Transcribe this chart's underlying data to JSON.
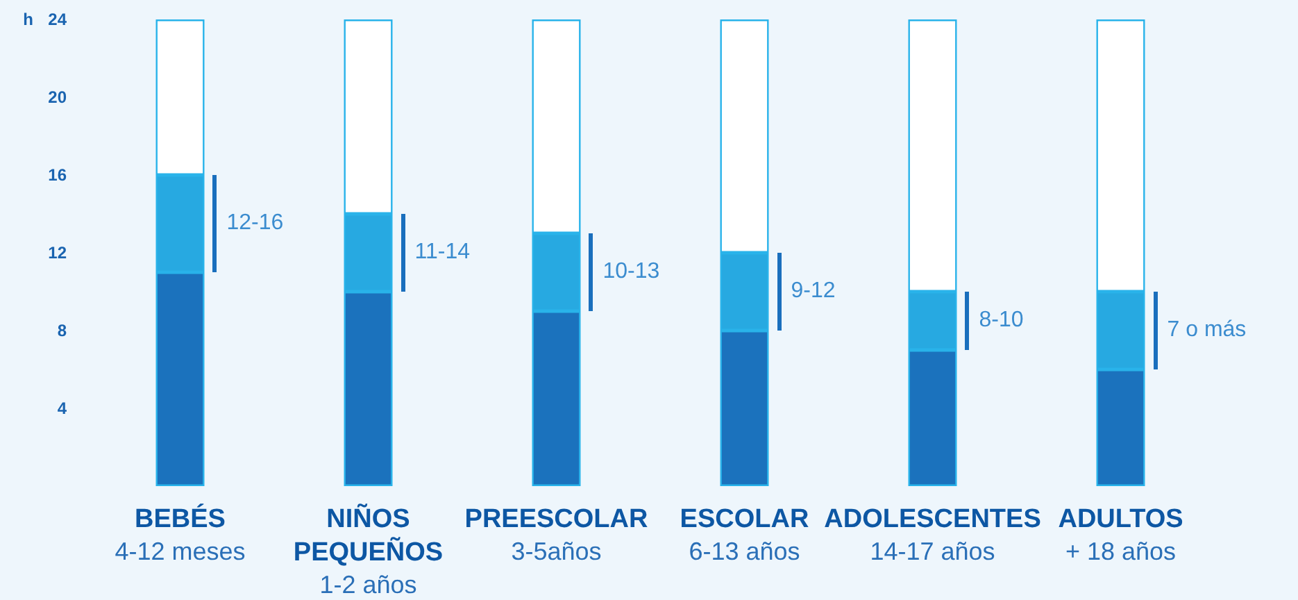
{
  "chart_data": {
    "type": "bar",
    "stacked": true,
    "ylabel": "h",
    "categories": [
      "BEBÉS\n4-12 meses",
      "NIÑOS\nPEQUEÑOS\n1-2 años",
      "PREESCOLAR\n3-5años",
      "ESCOLAR\n6-13 años",
      "ADOLESCENTES\n14-17 años",
      "ADULTOS\n+ 18 años"
    ],
    "series": [
      {
        "color": "#1b72bd",
        "values": [
          11,
          10,
          9,
          8,
          7,
          6
        ]
      },
      {
        "color": "#27a9e1",
        "values": [
          5,
          4,
          4,
          4,
          3,
          4
        ]
      },
      {
        "color": "#ffffff",
        "values": [
          8,
          10,
          11,
          12,
          14,
          14
        ]
      }
    ],
    "annotations": [
      "12-16",
      "11-14",
      "10-13",
      "9-12",
      "8-10",
      "7 o más"
    ],
    "ylim": [
      0,
      24
    ],
    "yticks": [
      4,
      8,
      12,
      16,
      20,
      24
    ],
    "grid": false
  }
}
